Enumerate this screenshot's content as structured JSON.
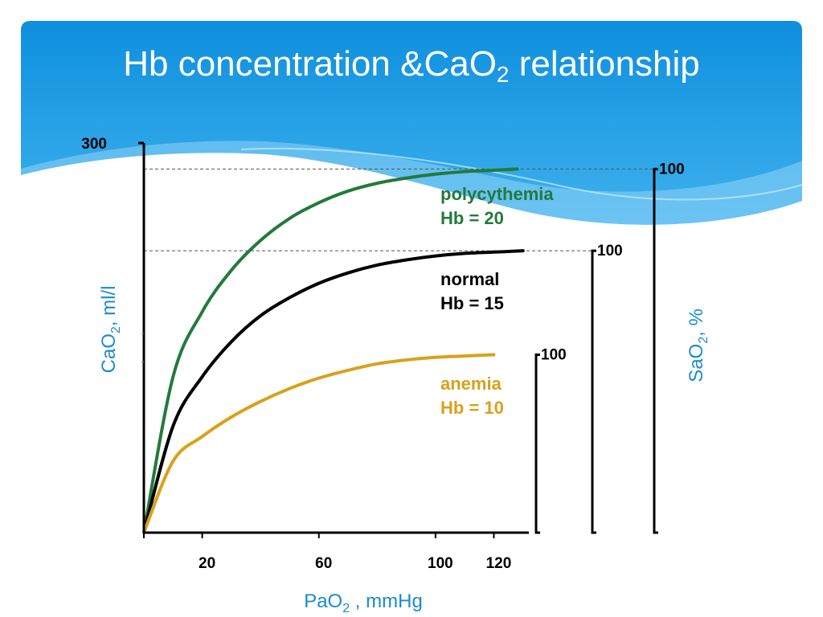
{
  "title": {
    "main": "Hb concentration &CaO",
    "sub": "2",
    "rest": " relationship"
  },
  "colors": {
    "header_top": "#0e8fdd",
    "header_bottom": "#3fb1ee",
    "axis_title": "#1b8bcf",
    "polycythemia": "#237a3b",
    "normal": "#000000",
    "anemia": "#d9a11b"
  },
  "chart_data": {
    "type": "line",
    "x_axis": {
      "title_main": "PaO",
      "title_sub": "2",
      "title_rest": " , mmHg",
      "range": [
        0,
        132
      ],
      "ticks": [
        20,
        60,
        100,
        120
      ]
    },
    "y_axis": {
      "title_main": "CaO",
      "title_sub": "2",
      "title_rest": ", ml/l",
      "range": [
        0,
        300
      ],
      "ticks": [
        300
      ]
    },
    "y2_axis": {
      "title_main": "SaO",
      "title_sub": "2",
      "title_rest": ", %",
      "brackets": [
        {
          "label": "100",
          "series": "anemia"
        },
        {
          "label": "100",
          "series": "normal"
        },
        {
          "label": "100",
          "series": "polycythemia"
        }
      ]
    },
    "series": [
      {
        "key": "polycythemia",
        "name": "polycythemia",
        "hb_label": "Hb = 20",
        "x_max": 128,
        "y_max": 280,
        "points": [
          [
            0,
            0
          ],
          [
            10,
            120
          ],
          [
            20,
            170
          ],
          [
            30,
            202
          ],
          [
            40,
            225
          ],
          [
            50,
            242
          ],
          [
            60,
            254
          ],
          [
            70,
            263
          ],
          [
            80,
            269
          ],
          [
            90,
            273
          ],
          [
            100,
            276
          ],
          [
            110,
            278
          ],
          [
            120,
            279
          ],
          [
            128,
            280
          ]
        ]
      },
      {
        "key": "normal",
        "name": "normal",
        "hb_label": "Hb = 15",
        "x_max": 130,
        "y_max": 217,
        "points": [
          [
            0,
            0
          ],
          [
            10,
            82
          ],
          [
            20,
            120
          ],
          [
            30,
            147
          ],
          [
            40,
            167
          ],
          [
            50,
            181
          ],
          [
            60,
            192
          ],
          [
            70,
            200
          ],
          [
            80,
            206
          ],
          [
            90,
            210
          ],
          [
            100,
            213
          ],
          [
            110,
            215
          ],
          [
            120,
            216
          ],
          [
            130,
            217
          ]
        ]
      },
      {
        "key": "anemia",
        "name": "anemia",
        "hb_label": "Hb = 10",
        "x_max": 120,
        "y_max": 137,
        "points": [
          [
            0,
            0
          ],
          [
            10,
            55
          ],
          [
            20,
            74
          ],
          [
            30,
            89
          ],
          [
            40,
            101
          ],
          [
            50,
            111
          ],
          [
            60,
            119
          ],
          [
            70,
            125
          ],
          [
            80,
            130
          ],
          [
            90,
            133
          ],
          [
            100,
            135
          ],
          [
            110,
            136
          ],
          [
            120,
            137
          ]
        ]
      }
    ],
    "reference_lines": [
      {
        "series": "polycythemia"
      },
      {
        "series": "normal"
      }
    ],
    "grid": false,
    "legend": "inline"
  }
}
